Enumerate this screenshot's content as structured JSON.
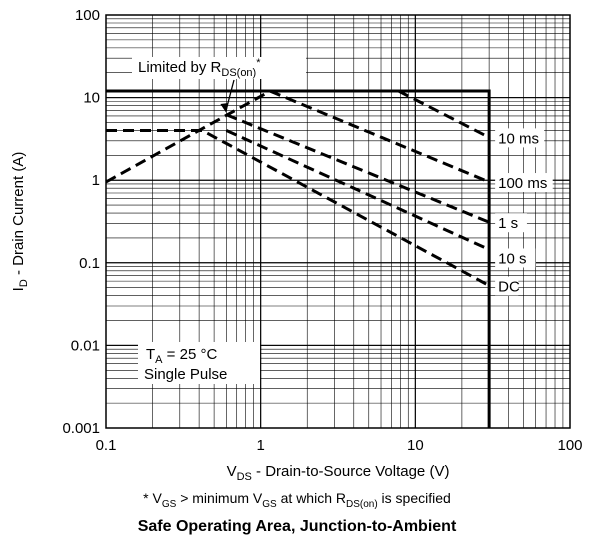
{
  "chart_data": {
    "type": "line",
    "title": "Safe Operating Area, Junction-to-Ambient",
    "xlabel": "V_DS - Drain-to-Source Voltage (V)",
    "ylabel": "I_D - Drain Current (A)",
    "xscale": "log",
    "yscale": "log",
    "xlim": [
      0.1,
      100
    ],
    "ylim": [
      0.001,
      100
    ],
    "grid": true,
    "x_ticks": [
      "0.1",
      "1",
      "10",
      "100"
    ],
    "y_ticks": [
      "0.001",
      "0.01",
      "0.1",
      "1",
      "10",
      "100"
    ],
    "boundaries": {
      "current_limit_A": 12,
      "voltage_limit_V": 30
    },
    "series": [
      {
        "name": "Limited by R_DS(on)*",
        "style": "dashed",
        "points": [
          [
            0.1,
            0.95
          ],
          [
            1.15,
            12
          ]
        ]
      },
      {
        "name": "10 ms",
        "style": "dashed",
        "points": [
          [
            7.8,
            12
          ],
          [
            30,
            3.3
          ]
        ]
      },
      {
        "name": "100 ms",
        "style": "dashed",
        "points": [
          [
            1.15,
            12
          ],
          [
            30,
            0.95
          ]
        ]
      },
      {
        "name": "1 s",
        "style": "dashed",
        "points": [
          [
            0.6,
            6.2
          ],
          [
            30,
            0.31
          ]
        ]
      },
      {
        "name": "10 s",
        "style": "dashed",
        "points": [
          [
            0.6,
            4.0
          ],
          [
            30,
            0.145
          ]
        ]
      },
      {
        "name": "DC",
        "style": "dashed",
        "points": [
          [
            0.1,
            4.0
          ],
          [
            0.42,
            4.0
          ],
          [
            30,
            0.053
          ]
        ]
      }
    ],
    "annotations": {
      "limited_by": {
        "text": "Limited by R",
        "sub": "DS(on)",
        "sup": "*"
      },
      "ta_prefix": "T",
      "ta_sub": "A",
      "ta_value": " = 25 °C",
      "single_pulse": "Single Pulse",
      "ylabel_main": "I",
      "ylabel_sub": "D",
      "ylabel_rest": " - Drain Current (A)",
      "xlabel_main": "V",
      "xlabel_sub": "DS",
      "xlabel_rest": " - Drain-to-Source Voltage (V)"
    }
  },
  "footnote": {
    "p1": "* V",
    "s1": "GS",
    "p2": " > minimum V",
    "s2": "GS",
    "p3": " at which R",
    "s3": "DS(on)",
    "p4": " is specified"
  }
}
